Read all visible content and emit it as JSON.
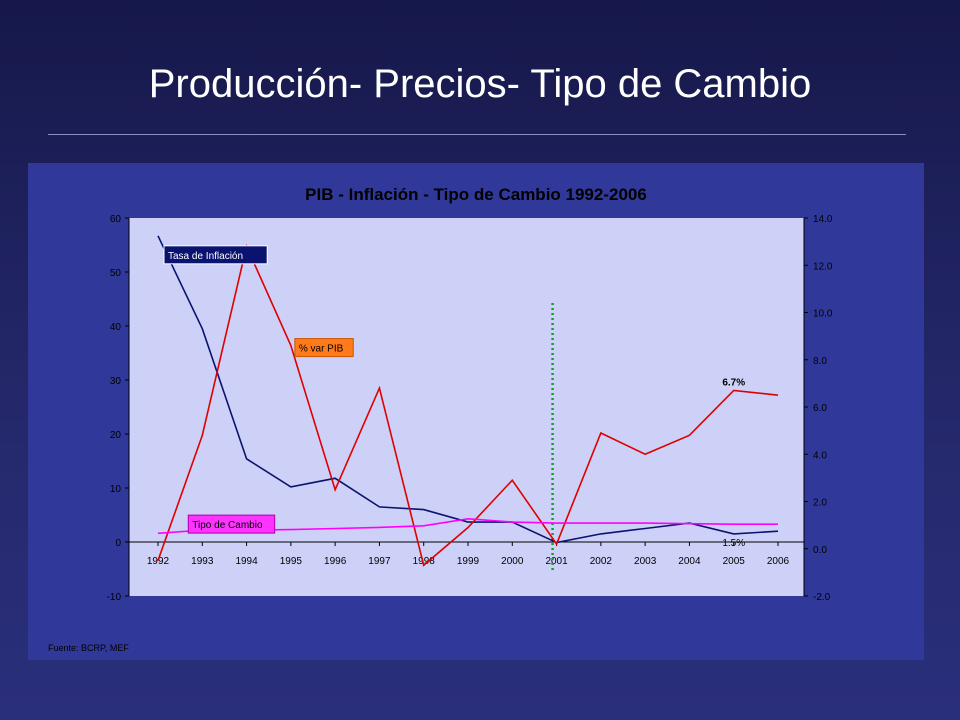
{
  "slide": {
    "title": "Producción- Precios- Tipo de Cambio"
  },
  "colors": {
    "background": "#1c1f56",
    "chart_panel": "#30399a",
    "plot_area": "#cdd1f7",
    "inflation": "#0a1470",
    "gdp": "#e00000",
    "exchange_rate": "#ff00ff",
    "marker_line": "#1a9a2a"
  },
  "chart_data": {
    "type": "line",
    "title": "PIB - Inflación - Tipo de Cambio 1992-2006",
    "categories": [
      "1992",
      "1993",
      "1994",
      "1995",
      "1996",
      "1997",
      "1998",
      "1999",
      "2000",
      "2001",
      "2002",
      "2003",
      "2004",
      "2005",
      "2006"
    ],
    "y_left": {
      "ylim": [
        -10,
        60
      ],
      "ticks": [
        "-10",
        "0",
        "10",
        "20",
        "30",
        "40",
        "50",
        "60"
      ]
    },
    "y_right": {
      "ylim": [
        -2.0,
        14.0
      ],
      "ticks": [
        "-2.0",
        "0.0",
        "2.0",
        "4.0",
        "6.0",
        "8.0",
        "10.0",
        "12.0",
        "14.0"
      ]
    },
    "grid": false,
    "series": [
      {
        "name": "Tasa de Inflación",
        "axis": "left",
        "color": "#0a1470",
        "values": [
          56.7,
          39.5,
          15.4,
          10.2,
          11.8,
          6.5,
          6.0,
          3.7,
          3.7,
          -0.1,
          1.5,
          2.5,
          3.5,
          1.5,
          2.0
        ]
      },
      {
        "name": "% var PIB",
        "axis": "right",
        "color": "#e00000",
        "values": [
          -0.5,
          4.8,
          12.8,
          8.6,
          2.5,
          6.8,
          -0.7,
          0.9,
          2.9,
          0.2,
          4.9,
          4.0,
          4.8,
          6.7,
          6.5
        ]
      },
      {
        "name": "Tipo de Cambio",
        "axis": "left",
        "color": "#ff00ff",
        "values": [
          1.6,
          2.2,
          2.2,
          2.3,
          2.5,
          2.7,
          3.0,
          4.3,
          3.7,
          3.5,
          3.5,
          3.5,
          3.4,
          3.3,
          3.3
        ]
      }
    ],
    "annotations": [
      {
        "text": "6.7%",
        "category": "2005",
        "series": "% var PIB"
      },
      {
        "text": "1.5%",
        "category": "2005",
        "series": "Tasa de Inflación"
      }
    ],
    "vertical_marker": {
      "category": "2001",
      "style": "dotted",
      "color": "#1a9a2a"
    },
    "source": "Fuente: BCRP, MEF"
  }
}
